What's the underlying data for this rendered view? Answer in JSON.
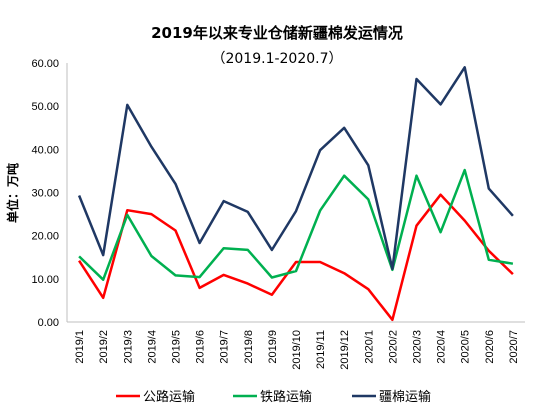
{
  "chart_data": {
    "type": "line",
    "title": "2019年以来专业仓储新疆棉发运情况",
    "subtitle": "（2019.1-2020.7）",
    "ylabel": "单位：万吨",
    "xlabel": "",
    "ylim": [
      0,
      60
    ],
    "yticks": [
      "0.00",
      "10.00",
      "20.00",
      "30.00",
      "40.00",
      "50.00",
      "60.00"
    ],
    "grid": false,
    "legend_position": "bottom",
    "categories": [
      "2019/1",
      "2019/2",
      "2019/3",
      "2019/4",
      "2019/5",
      "2019/6",
      "2019/7",
      "2019/8",
      "2019/9",
      "2019/10",
      "2019/11",
      "2019/12",
      "2020/1",
      "2020/2",
      "2020/3",
      "2020/4",
      "2020/5",
      "2020/6",
      "2020/7"
    ],
    "series": [
      {
        "name": "公路运输",
        "color": "#ff0000",
        "values": [
          14.2,
          5.6,
          25.9,
          25.0,
          21.2,
          7.9,
          10.9,
          8.9,
          6.3,
          13.9,
          13.9,
          11.3,
          7.6,
          0.5,
          22.3,
          29.5,
          23.5,
          16.5,
          11.1
        ]
      },
      {
        "name": "铁路运输",
        "color": "#00b050",
        "values": [
          15.2,
          9.8,
          24.8,
          15.3,
          10.8,
          10.4,
          17.1,
          16.7,
          10.3,
          11.8,
          25.8,
          33.9,
          28.4,
          12.1,
          33.9,
          20.8,
          35.2,
          14.4,
          13.5
        ]
      },
      {
        "name": "疆棉运输",
        "color": "#1f3864",
        "values": [
          29.3,
          15.5,
          50.3,
          40.6,
          32.0,
          18.3,
          28.0,
          25.5,
          16.7,
          25.7,
          39.8,
          45.0,
          36.3,
          12.3,
          56.3,
          50.4,
          59.0,
          30.9,
          24.6
        ]
      }
    ]
  }
}
